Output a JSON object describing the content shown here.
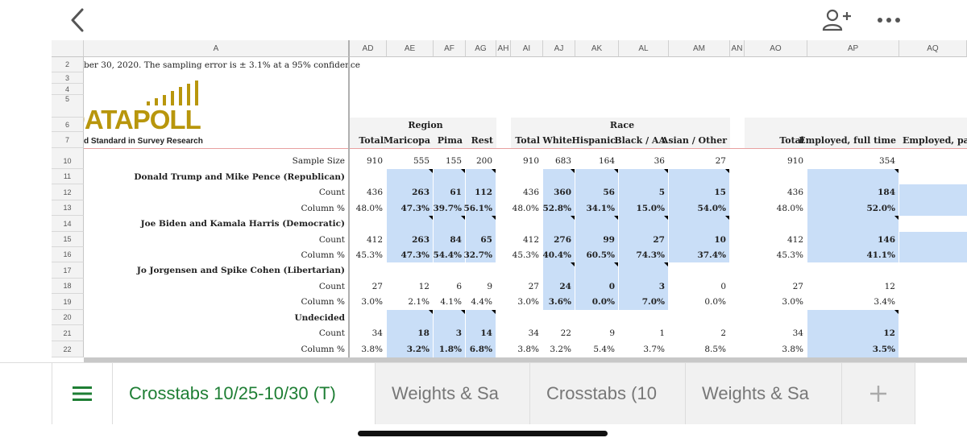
{
  "topbar": {
    "back_icon": "chevron-left-icon",
    "share_icon": "person-add-icon",
    "more_icon": "more-horizontal-icon"
  },
  "columns": [
    {
      "id": "A"
    },
    {
      "id": "AD"
    },
    {
      "id": "AE"
    },
    {
      "id": "AF"
    },
    {
      "id": "AG"
    },
    {
      "id": "AH"
    },
    {
      "id": "AI"
    },
    {
      "id": "AJ"
    },
    {
      "id": "AK"
    },
    {
      "id": "AL"
    },
    {
      "id": "AM"
    },
    {
      "id": "AN"
    },
    {
      "id": "AO"
    },
    {
      "id": "AP"
    },
    {
      "id": "AQ"
    }
  ],
  "row_numbers": [
    "2",
    "3",
    "4",
    "5",
    "6",
    "7",
    "10",
    "11",
    "12",
    "13",
    "14",
    "15",
    "16",
    "17",
    "18",
    "19",
    "20",
    "21",
    "22"
  ],
  "intro_text": "ber 30, 2020. The sampling error is ± 3.1% at a 95% confidence",
  "logo": {
    "name": "DATAPOLL",
    "tagline": "d Standard in Survey Research",
    "gold": "#b8960c"
  },
  "groups": {
    "region": "Region",
    "race": "Race"
  },
  "headers": {
    "total": "Total",
    "maricopa": "Maricopa",
    "pima": "Pima",
    "rest": "Rest",
    "total2": "Total",
    "white": "White",
    "hispanic": "Hispanic",
    "black": "Black / AA",
    "asian": "Asian / Other",
    "total3": "Total",
    "employed_full": "Employed, full time",
    "employed_part": "Employed, part"
  },
  "labels": {
    "sample_size": "Sample Size",
    "trump": "Donald Trump and Mike Pence (Republican)",
    "biden": "Joe Biden and Kamala Harris (Democratic)",
    "jorgensen": "Jo Jorgensen and Spike Cohen (Libertarian)",
    "undecided": "Undecided",
    "count": "Count",
    "colpct": "Column %"
  },
  "rows": {
    "sample": [
      "910",
      "555",
      "155",
      "200",
      "910",
      "683",
      "164",
      "36",
      "27",
      "910",
      "354"
    ],
    "trump_count": [
      "436",
      "263",
      "61",
      "112",
      "436",
      "360",
      "56",
      "5",
      "15",
      "436",
      "184"
    ],
    "trump_pct": [
      "48.0%",
      "47.3%",
      "39.7%",
      "56.1%",
      "48.0%",
      "52.8%",
      "34.1%",
      "15.0%",
      "54.0%",
      "48.0%",
      "52.0%"
    ],
    "biden_count": [
      "412",
      "263",
      "84",
      "65",
      "412",
      "276",
      "99",
      "27",
      "10",
      "412",
      "146"
    ],
    "biden_pct": [
      "45.3%",
      "47.3%",
      "54.4%",
      "32.7%",
      "45.3%",
      "40.4%",
      "60.5%",
      "74.3%",
      "37.4%",
      "45.3%",
      "41.1%"
    ],
    "jorg_count": [
      "27",
      "12",
      "6",
      "9",
      "27",
      "24",
      "0",
      "3",
      "0",
      "27",
      "12"
    ],
    "jorg_pct": [
      "3.0%",
      "2.1%",
      "4.1%",
      "4.4%",
      "3.0%",
      "3.6%",
      "0.0%",
      "7.0%",
      "0.0%",
      "3.0%",
      "3.4%"
    ],
    "und_count": [
      "34",
      "18",
      "3",
      "14",
      "34",
      "22",
      "9",
      "1",
      "2",
      "34",
      "12"
    ],
    "und_pct": [
      "3.8%",
      "3.2%",
      "1.8%",
      "6.8%",
      "3.8%",
      "3.2%",
      "5.4%",
      "3.7%",
      "8.5%",
      "3.8%",
      "3.5%"
    ]
  },
  "tabs": [
    {
      "label": "Crosstabs 10/25-10/30 (T)",
      "active": true
    },
    {
      "label": "Weights & Sa",
      "active": false
    },
    {
      "label": "Crosstabs (10",
      "active": false
    },
    {
      "label": "Weights & Sa",
      "active": false
    }
  ],
  "tab_icons": {
    "menu": "hamburger-menu-icon",
    "add": "plus-icon"
  },
  "colors": {
    "highlight": "#c9def7",
    "active_tab": "#1e7e34"
  }
}
